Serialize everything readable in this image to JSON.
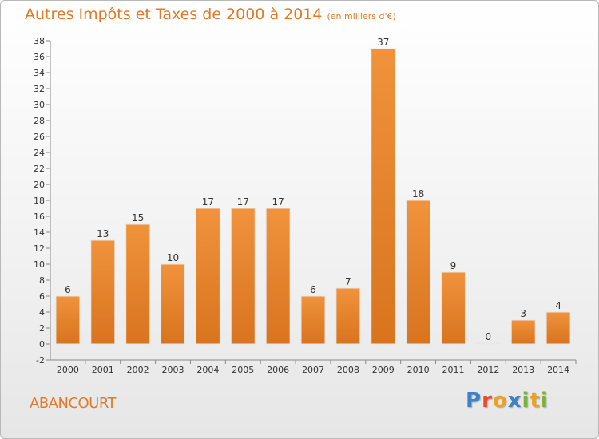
{
  "chart_data": {
    "type": "bar",
    "title": "Autres Impôts et Taxes de 2000 à 2014",
    "unit_label": "(en milliers d'€)",
    "categories": [
      "2000",
      "2001",
      "2002",
      "2003",
      "2004",
      "2005",
      "2006",
      "2007",
      "2008",
      "2009",
      "2010",
      "2011",
      "2012",
      "2013",
      "2014"
    ],
    "values": [
      6,
      13,
      15,
      10,
      17,
      17,
      17,
      6,
      7,
      37,
      18,
      9,
      0,
      3,
      4
    ],
    "ylim": [
      -2,
      38
    ],
    "yticks": [
      -2,
      0,
      2,
      4,
      6,
      8,
      10,
      12,
      14,
      16,
      18,
      20,
      22,
      24,
      26,
      28,
      30,
      32,
      34,
      36,
      38
    ],
    "grid": false,
    "bar_color": "#f0933c",
    "bar_color_dark": "#d9731e"
  },
  "footer": {
    "commune": "ABANCOURT",
    "brand_letters": [
      {
        "ch": "P",
        "color": "#3c82c4"
      },
      {
        "ch": "r",
        "color": "#e84d2a"
      },
      {
        "ch": "o",
        "color": "#f0a020"
      },
      {
        "ch": "x",
        "color": "#3c82c4"
      },
      {
        "ch": "i",
        "color": "#78b436"
      },
      {
        "ch": "t",
        "color": "#f0a020"
      },
      {
        "ch": "i",
        "color": "#78b436"
      }
    ]
  }
}
